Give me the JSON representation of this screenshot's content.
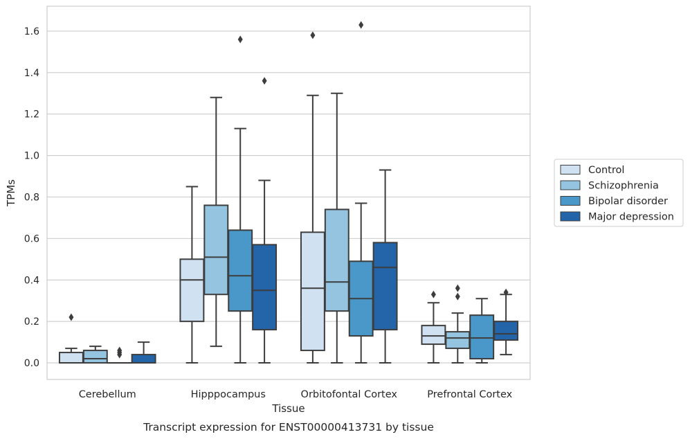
{
  "caption": "Transcript expression for ENST00000413731 by tissue",
  "chart_data": {
    "type": "box",
    "xlabel": "Tissue",
    "ylabel": "TPMs",
    "ylim": [
      -0.08,
      1.72
    ],
    "yticks": [
      "0.0",
      "0.2",
      "0.4",
      "0.6",
      "0.8",
      "1.0",
      "1.2",
      "1.4",
      "1.6"
    ],
    "grid": "horizontal",
    "legend_position": "right",
    "categories": [
      "Cerebellum",
      "Hipppocampus",
      "Orbitofontal Cortex",
      "Prefrontal Cortex"
    ],
    "series": [
      {
        "name": "Control",
        "color": "#d0e1f2",
        "boxes": [
          {
            "whislo": 0.0,
            "q1": 0.0,
            "med": 0.0,
            "q3": 0.05,
            "whishi": 0.07,
            "fliers": [
              0.22
            ]
          },
          {
            "whislo": 0.0,
            "q1": 0.2,
            "med": 0.4,
            "q3": 0.5,
            "whishi": 0.85,
            "fliers": []
          },
          {
            "whislo": 0.0,
            "q1": 0.06,
            "med": 0.36,
            "q3": 0.63,
            "whishi": 1.29,
            "fliers": [
              1.58
            ]
          },
          {
            "whislo": 0.0,
            "q1": 0.09,
            "med": 0.13,
            "q3": 0.18,
            "whishi": 0.29,
            "fliers": [
              0.33
            ]
          }
        ]
      },
      {
        "name": "Schizophrenia",
        "color": "#94c4df",
        "boxes": [
          {
            "whislo": 0.0,
            "q1": 0.0,
            "med": 0.02,
            "q3": 0.06,
            "whishi": 0.08,
            "fliers": []
          },
          {
            "whislo": 0.08,
            "q1": 0.33,
            "med": 0.51,
            "q3": 0.76,
            "whishi": 1.28,
            "fliers": []
          },
          {
            "whislo": 0.0,
            "q1": 0.25,
            "med": 0.39,
            "q3": 0.74,
            "whishi": 1.3,
            "fliers": []
          },
          {
            "whislo": 0.0,
            "q1": 0.07,
            "med": 0.12,
            "q3": 0.15,
            "whishi": 0.24,
            "fliers": [
              0.32,
              0.36
            ]
          }
        ]
      },
      {
        "name": "Bipolar disorder",
        "color": "#4a98c9",
        "boxes": [
          {
            "whislo": 0.0,
            "q1": 0.0,
            "med": 0.0,
            "q3": 0.0,
            "whishi": 0.0,
            "fliers": [
              0.04,
              0.05,
              0.06
            ]
          },
          {
            "whislo": 0.0,
            "q1": 0.25,
            "med": 0.42,
            "q3": 0.64,
            "whishi": 1.13,
            "fliers": [
              1.56
            ]
          },
          {
            "whislo": 0.0,
            "q1": 0.13,
            "med": 0.31,
            "q3": 0.49,
            "whishi": 0.77,
            "fliers": [
              1.63
            ]
          },
          {
            "whislo": 0.0,
            "q1": 0.02,
            "med": 0.12,
            "q3": 0.23,
            "whishi": 0.31,
            "fliers": []
          }
        ]
      },
      {
        "name": "Major depression",
        "color": "#2365a8",
        "boxes": [
          {
            "whislo": 0.0,
            "q1": 0.0,
            "med": 0.0,
            "q3": 0.04,
            "whishi": 0.1,
            "fliers": []
          },
          {
            "whislo": 0.0,
            "q1": 0.16,
            "med": 0.35,
            "q3": 0.57,
            "whishi": 0.88,
            "fliers": [
              1.36
            ]
          },
          {
            "whislo": 0.0,
            "q1": 0.16,
            "med": 0.46,
            "q3": 0.58,
            "whishi": 0.93,
            "fliers": []
          },
          {
            "whislo": 0.04,
            "q1": 0.11,
            "med": 0.14,
            "q3": 0.2,
            "whishi": 0.33,
            "fliers": [
              0.34
            ]
          }
        ]
      }
    ]
  }
}
